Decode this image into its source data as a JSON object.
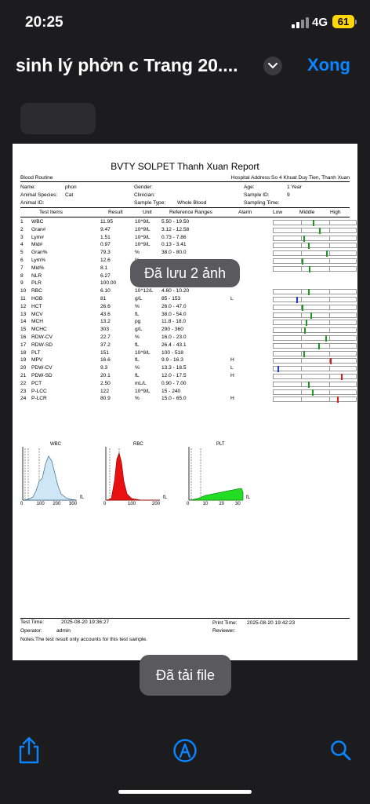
{
  "status_bar": {
    "time": "20:25",
    "network": "4G",
    "battery": "61"
  },
  "header": {
    "title": "sinh lý phởn c Trang 20....",
    "done_label": "Xong"
  },
  "report": {
    "title": "BVTY SOLPET Thanh Xuan Report",
    "section": "Blood Routine",
    "hospital_address": "Hospital Address:So 4 Khuat Duy Tien, Thanh Xuan",
    "name_label": "Name:",
    "name": "phon",
    "species_label": "Animal Species:",
    "species": "Cat",
    "animal_id_label": "Animal ID:",
    "gender_label": "Gender:",
    "clinician_label": "Clinician:",
    "sample_type_label": "Sample Type:",
    "sample_type": "Whole Blood",
    "age_label": "Age:",
    "age": "1 Year",
    "sample_id_label": "Sample ID:",
    "sample_id": "9",
    "sampling_time_label": "Sampling Time:",
    "columns": {
      "test_items": "Test Items",
      "result": "Result",
      "unit": "Unit",
      "ref": "Reference Ranges",
      "alarm": "Alarm",
      "low": "Low",
      "middle": "Middle",
      "high": "High"
    },
    "rows": [
      {
        "n": "1",
        "item": "WBC",
        "result": "11.95",
        "unit": "10^9/L",
        "ref": "5.50 - 19.50",
        "alarm": "",
        "pos": 0.48,
        "color": "#1a9a1a"
      },
      {
        "n": "2",
        "item": "Gran#",
        "result": "9.47",
        "unit": "10^9/L",
        "ref": "3.12 - 12.58",
        "alarm": "",
        "pos": 0.55,
        "color": "#1a9a1a"
      },
      {
        "n": "3",
        "item": "Lym#",
        "result": "1.51",
        "unit": "10^9/L",
        "ref": "0.73 - 7.86",
        "alarm": "",
        "pos": 0.36,
        "color": "#1a9a1a"
      },
      {
        "n": "4",
        "item": "Mid#",
        "result": "0.97",
        "unit": "10^9/L",
        "ref": "0.13 - 3.41",
        "alarm": "",
        "pos": 0.42,
        "color": "#1a9a1a"
      },
      {
        "n": "5",
        "item": "Gran%",
        "result": "79.3",
        "unit": "%",
        "ref": "38.0 - 80.0",
        "alarm": "",
        "pos": 0.64,
        "color": "#1a9a1a"
      },
      {
        "n": "6",
        "item": "Lym%",
        "result": "12.6",
        "unit": "%",
        "ref": "",
        "alarm": "",
        "pos": 0.34,
        "color": "#1a9a1a"
      },
      {
        "n": "7",
        "item": "Mid%",
        "result": "8.1",
        "unit": "",
        "ref": "",
        "alarm": "",
        "pos": 0.43,
        "color": "#1a9a1a"
      },
      {
        "n": "8",
        "item": "NLR",
        "result": "6.27",
        "unit": "",
        "ref": "",
        "alarm": "",
        "pos": null,
        "color": ""
      },
      {
        "n": "9",
        "item": "PLR",
        "result": "100.00",
        "unit": "",
        "ref": "",
        "alarm": "",
        "pos": null,
        "color": ""
      },
      {
        "n": "10",
        "item": "RBC",
        "result": "6.10",
        "unit": "10^12/L",
        "ref": "4.60 - 10.20",
        "alarm": "",
        "pos": 0.42,
        "color": "#1a9a1a"
      },
      {
        "n": "11",
        "item": "HGB",
        "result": "81",
        "unit": "g/L",
        "ref": "85 - 153",
        "alarm": "L",
        "pos": 0.28,
        "color": "#1a3ad0"
      },
      {
        "n": "12",
        "item": "HCT",
        "result": "26.6",
        "unit": "%",
        "ref": "26.0 - 47.0",
        "alarm": "",
        "pos": 0.34,
        "color": "#1a9a1a"
      },
      {
        "n": "13",
        "item": "MCV",
        "result": "43.6",
        "unit": "fL",
        "ref": "38.0 - 54.0",
        "alarm": "",
        "pos": 0.45,
        "color": "#1a9a1a"
      },
      {
        "n": "14",
        "item": "MCH",
        "result": "13.2",
        "unit": "pg",
        "ref": "11.8 - 18.0",
        "alarm": "",
        "pos": 0.39,
        "color": "#1a9a1a"
      },
      {
        "n": "15",
        "item": "MCHC",
        "result": "303",
        "unit": "g/L",
        "ref": "290 - 360",
        "alarm": "",
        "pos": 0.37,
        "color": "#1a9a1a"
      },
      {
        "n": "16",
        "item": "RDW-CV",
        "result": "22.7",
        "unit": "%",
        "ref": "16.0 - 23.0",
        "alarm": "",
        "pos": 0.63,
        "color": "#1a9a1a"
      },
      {
        "n": "17",
        "item": "RDW-SD",
        "result": "37.2",
        "unit": "fL",
        "ref": "26.4 - 43.1",
        "alarm": "",
        "pos": 0.54,
        "color": "#1a9a1a"
      },
      {
        "n": "18",
        "item": "PLT",
        "result": "151",
        "unit": "10^9/L",
        "ref": "100 - 518",
        "alarm": "",
        "pos": 0.36,
        "color": "#1a9a1a"
      },
      {
        "n": "19",
        "item": "MPV",
        "result": "16.6",
        "unit": "fL",
        "ref": "9.9 - 16.3",
        "alarm": "H",
        "pos": 0.69,
        "color": "#e01a1a"
      },
      {
        "n": "20",
        "item": "PDW-CV",
        "result": "9.3",
        "unit": "%",
        "ref": "13.3 - 18.5",
        "alarm": "L",
        "pos": 0.05,
        "color": "#1a3ad0"
      },
      {
        "n": "21",
        "item": "PDW-SD",
        "result": "20.1",
        "unit": "fL",
        "ref": "12.0 - 17.5",
        "alarm": "H",
        "pos": 0.82,
        "color": "#e01a1a"
      },
      {
        "n": "22",
        "item": "PCT",
        "result": "2.50",
        "unit": "mL/L",
        "ref": "0.90 - 7.00",
        "alarm": "",
        "pos": 0.42,
        "color": "#1a9a1a"
      },
      {
        "n": "23",
        "item": "P-LCC",
        "result": "122",
        "unit": "10^9/L",
        "ref": "15 - 240",
        "alarm": "",
        "pos": 0.47,
        "color": "#1a9a1a"
      },
      {
        "n": "24",
        "item": "P-LCR",
        "result": "80.9",
        "unit": "%",
        "ref": "15.0 - 65.0",
        "alarm": "H",
        "pos": 0.77,
        "color": "#e01a1a"
      }
    ],
    "histograms": [
      {
        "name": "WBC",
        "ticks": [
          "0",
          "100",
          "200",
          "300"
        ],
        "unit": "fL",
        "fill": "#cfe6f6",
        "stroke": "#3a6a8a"
      },
      {
        "name": "RBC",
        "ticks": [
          "0",
          "100",
          "200"
        ],
        "unit": "fL",
        "fill": "#e81010",
        "stroke": "#a00000"
      },
      {
        "name": "PLT",
        "ticks": [
          "0",
          "10",
          "20",
          "30"
        ],
        "unit": "fL",
        "fill": "#22dd22",
        "stroke": "#118811"
      }
    ],
    "test_time_label": "Test Time:",
    "test_time": "2025-08-20 19:36:27",
    "print_time_label": "Print Time:",
    "print_time": "2025-08-20 19:42:23",
    "operator_label": "Operator:",
    "operator": "admin",
    "reviewer_label": "Reviewer:",
    "notes": "Notes:The test result only accounts for this test sample."
  },
  "toasts": {
    "saved": "Đã lưu 2 ảnh",
    "downloaded": "Đã tải file"
  },
  "toolbar": {
    "icons": [
      "share-icon",
      "markup-icon",
      "search-icon"
    ]
  }
}
